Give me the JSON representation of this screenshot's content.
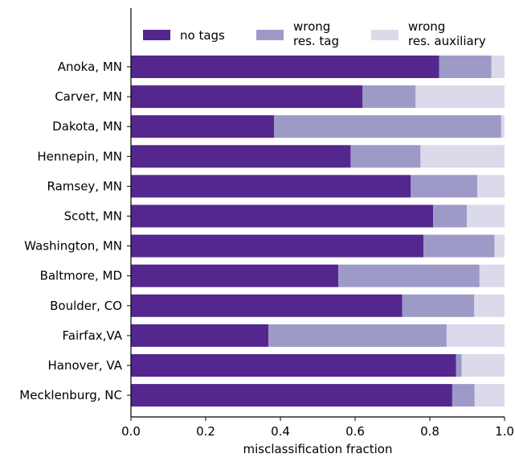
{
  "chart_data": {
    "type": "bar",
    "orientation": "horizontal",
    "stacked": true,
    "categories": [
      "Anoka, MN",
      "Carver, MN",
      "Dakota, MN",
      "Hennepin, MN",
      "Ramsey, MN",
      "Scott, MN",
      "Washington, MN",
      "Baltmore, MD",
      "Boulder, CO",
      "Fairfax,VA",
      "Hanover, VA",
      "Mecklenburg, NC"
    ],
    "series": [
      {
        "name": "no tags",
        "color": "#54278f",
        "values": [
          0.825,
          0.62,
          0.383,
          0.588,
          0.749,
          0.809,
          0.783,
          0.555,
          0.726,
          0.368,
          0.87,
          0.86
        ]
      },
      {
        "name": "wrong\nres. tag",
        "color": "#9e9ac8",
        "values": [
          0.14,
          0.142,
          0.608,
          0.187,
          0.178,
          0.09,
          0.19,
          0.378,
          0.193,
          0.477,
          0.015,
          0.06
        ]
      },
      {
        "name": "wrong\nres. auxiliary",
        "color": "#dadaeb",
        "values": [
          0.035,
          0.238,
          0.009,
          0.225,
          0.073,
          0.101,
          0.027,
          0.067,
          0.081,
          0.155,
          0.115,
          0.08
        ]
      }
    ],
    "xlabel": "misclassification fraction",
    "ylabel": "",
    "xlim": [
      0,
      1
    ],
    "xticks": [
      "0.0",
      "0.2",
      "0.4",
      "0.6",
      "0.8",
      "1.0"
    ],
    "legend_position": "top",
    "grid": false
  }
}
